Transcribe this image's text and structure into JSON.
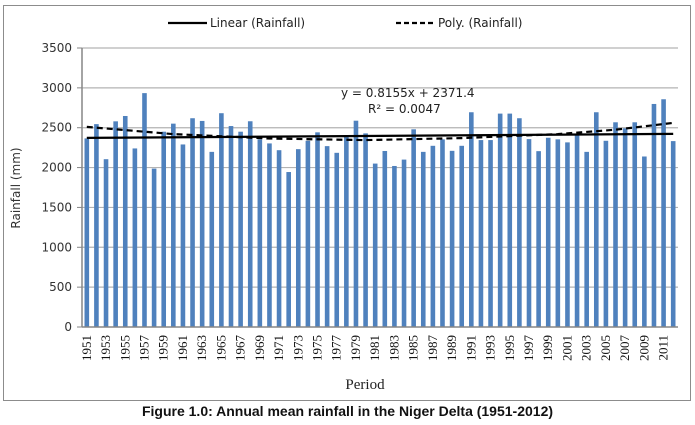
{
  "caption": "Figure 1.0: Annual mean rainfall in the Niger Delta (1951-2012)",
  "chart_data": {
    "type": "bar",
    "title": "",
    "xlabel": "Period",
    "ylabel": "Rainfall (mm)",
    "ylim": [
      0,
      3500
    ],
    "yticks": [
      0,
      500,
      1000,
      1500,
      2000,
      2500,
      3000,
      3500
    ],
    "grid": true,
    "legend_position": "top",
    "bar_color": "#4f81bd",
    "categories": [
      1951,
      1952,
      1953,
      1954,
      1955,
      1956,
      1957,
      1958,
      1959,
      1960,
      1961,
      1962,
      1963,
      1964,
      1965,
      1966,
      1967,
      1968,
      1969,
      1970,
      1971,
      1972,
      1973,
      1974,
      1975,
      1976,
      1977,
      1978,
      1979,
      1980,
      1981,
      1982,
      1983,
      1984,
      1985,
      1986,
      1987,
      1988,
      1989,
      1990,
      1991,
      1992,
      1993,
      1994,
      1995,
      1996,
      1997,
      1998,
      1999,
      2000,
      2001,
      2002,
      2003,
      2004,
      2005,
      2006,
      2007,
      2008,
      2009,
      2010,
      2011,
      2012
    ],
    "xtick_labels": [
      "1951",
      "1953",
      "1955",
      "1957",
      "1959",
      "1961",
      "1963",
      "1965",
      "1967",
      "1969",
      "1971",
      "1973",
      "1975",
      "1977",
      "1979",
      "1981",
      "1983",
      "1985",
      "1987",
      "1989",
      "1991",
      "1993",
      "1995",
      "1997",
      "1999",
      "2001",
      "2003",
      "2005",
      "2007",
      "2009",
      "2011"
    ],
    "series": [
      {
        "name": "Rainfall",
        "values": [
          2366,
          2545,
          2105,
          2580,
          2647,
          2240,
          2934,
          1987,
          2450,
          2551,
          2290,
          2619,
          2585,
          2197,
          2682,
          2521,
          2450,
          2581,
          2354,
          2303,
          2218,
          1944,
          2231,
          2336,
          2442,
          2269,
          2185,
          2386,
          2588,
          2429,
          2050,
          2208,
          2020,
          2100,
          2480,
          2197,
          2273,
          2354,
          2210,
          2273,
          2694,
          2345,
          2345,
          2677,
          2677,
          2619,
          2357,
          2206,
          2374,
          2354,
          2316,
          2408,
          2197,
          2694,
          2336,
          2568,
          2492,
          2568,
          2139,
          2798,
          2857,
          2332
        ]
      }
    ],
    "trendlines": [
      {
        "name": "Linear (Rainfall)",
        "style": "solid",
        "color": "#000000",
        "slope": 0.8155,
        "intercept": 2371.4
      },
      {
        "name": "Poly. (Rainfall)",
        "style": "dashed",
        "color": "#000000",
        "points": [
          [
            1,
            2510
          ],
          [
            10,
            2420
          ],
          [
            20,
            2365
          ],
          [
            30,
            2345
          ],
          [
            40,
            2370
          ],
          [
            50,
            2420
          ],
          [
            56,
            2475
          ],
          [
            62,
            2560
          ]
        ]
      }
    ],
    "annotations": {
      "equation": "y = 0.8155x + 2371.4",
      "r_squared": "R² = 0.0047"
    },
    "legend": [
      "Linear (Rainfall)",
      "Poly. (Rainfall)"
    ]
  }
}
